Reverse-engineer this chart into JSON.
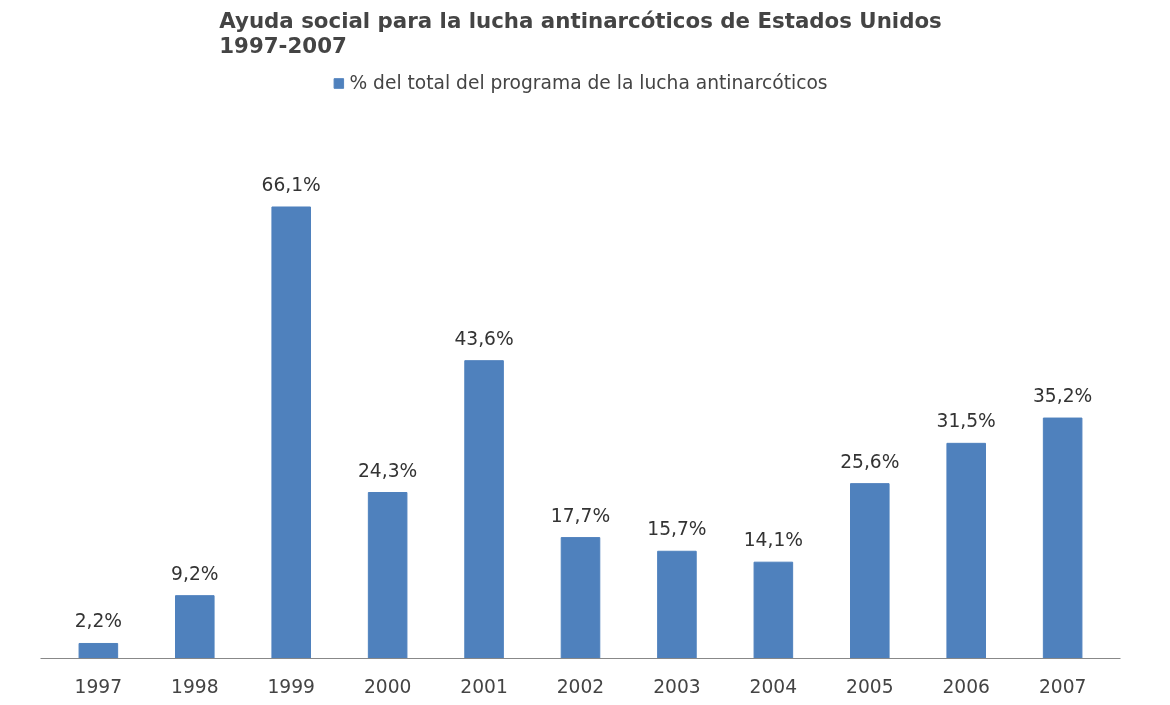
{
  "chart_data": {
    "type": "bar",
    "title": "Ayuda social para la lucha antinarcóticos de Estados Unidos 1997-2007",
    "categories": [
      "1997",
      "1998",
      "1999",
      "2000",
      "2001",
      "2002",
      "2003",
      "2004",
      "2005",
      "2006",
      "2007"
    ],
    "series": [
      {
        "name": "% del total del programa de la lucha antinarcóticos",
        "color": "#4f81bd",
        "values": [
          2.2,
          9.2,
          66.1,
          24.3,
          43.6,
          17.7,
          15.7,
          14.1,
          25.6,
          31.5,
          35.2
        ],
        "value_labels": [
          "2,2%",
          "9,2%",
          "66,1%",
          "24,3%",
          "43,6%",
          "17,7%",
          "15,7%",
          "14,1%",
          "25,6%",
          "31,5%",
          "35,2%"
        ]
      }
    ],
    "legend": "top",
    "grid": false
  }
}
